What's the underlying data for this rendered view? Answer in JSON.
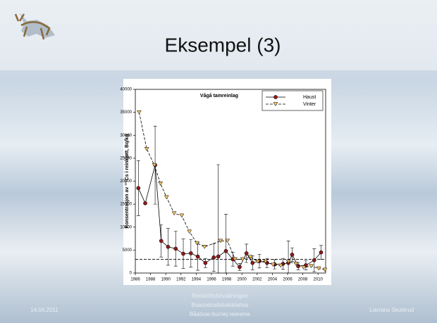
{
  "slide": {
    "title": "Eksempel (3)",
    "date": "14.04.2011",
    "org": [
      "Reindriftsforvaltningen",
      "Boazodoallohálddahus",
      "Båatsoe-burriej reereme"
    ],
    "author": "Lavrans Skuterud"
  },
  "chart_data": {
    "type": "line",
    "title": "Vågå tamreinlag",
    "y_label": "Konsentrasjon av ¹³⁷Cs i reinkjøtt, Bq/kg",
    "xlim": [
      1986,
      2011
    ],
    "xticks": [
      1986,
      1988,
      1990,
      1992,
      1994,
      1996,
      1998,
      2000,
      2002,
      2004,
      2006,
      2008,
      2010
    ],
    "ylim": [
      0,
      40000
    ],
    "yticks": [
      0,
      5000,
      10000,
      15000,
      20000,
      25000,
      30000,
      35000,
      40000
    ],
    "reference_line": 3000,
    "series": [
      {
        "name": "Haust",
        "color": "#8b1a1a",
        "line_style": "solid",
        "marker": "circle",
        "x": [
          1986.4,
          1987.3,
          1988.6,
          1989.4,
          1990.3,
          1991.3,
          1992.3,
          1993.3,
          1994.2,
          1995.2,
          1996.3,
          1996.9,
          1997.9,
          1998.8,
          1999.7,
          2000.6,
          2001.4,
          2002.3,
          2003.3,
          2004.3,
          2005.4,
          2006.1,
          2006.6,
          2007.4,
          2008.4,
          2009.5,
          2010.4
        ],
        "values": [
          18500,
          15200,
          23500,
          7000,
          5700,
          5300,
          4200,
          4300,
          3600,
          2200,
          3400,
          3600,
          4800,
          3000,
          1300,
          4300,
          2200,
          2600,
          2200,
          1900,
          2000,
          2200,
          4000,
          1500,
          1700,
          2800,
          4500
        ],
        "errors": [
          6000,
          null,
          8500,
          3500,
          4000,
          3800,
          3200,
          3000,
          3000,
          1000,
          3000,
          20000,
          8000,
          1500,
          800,
          2000,
          1500,
          1500,
          1000,
          1000,
          1200,
          4800,
          1500,
          800,
          1000,
          2500,
          1500
        ]
      },
      {
        "name": "Vinter",
        "color": "#f0c060",
        "line_style": "dashed",
        "marker": "triangle-down",
        "x": [
          1986.5,
          1987.5,
          1988.5,
          1989.3,
          1990.1,
          1991.1,
          1992.1,
          1993.1,
          1994.1,
          1995.1,
          1997.2,
          1998.1,
          1999.1,
          2000.1,
          2001.1,
          2002.1,
          2003.1,
          2004.1,
          2005.1,
          2006.1,
          2007.1,
          2008.1,
          2009.1,
          2010.1,
          2010.9
        ],
        "values": [
          35000,
          27000,
          23500,
          19500,
          16500,
          13000,
          12500,
          9000,
          6500,
          5700,
          7000,
          7000,
          3000,
          3000,
          3500,
          2500,
          2500,
          1800,
          1600,
          2500,
          2000,
          1200,
          1500,
          1000,
          700
        ]
      }
    ]
  }
}
